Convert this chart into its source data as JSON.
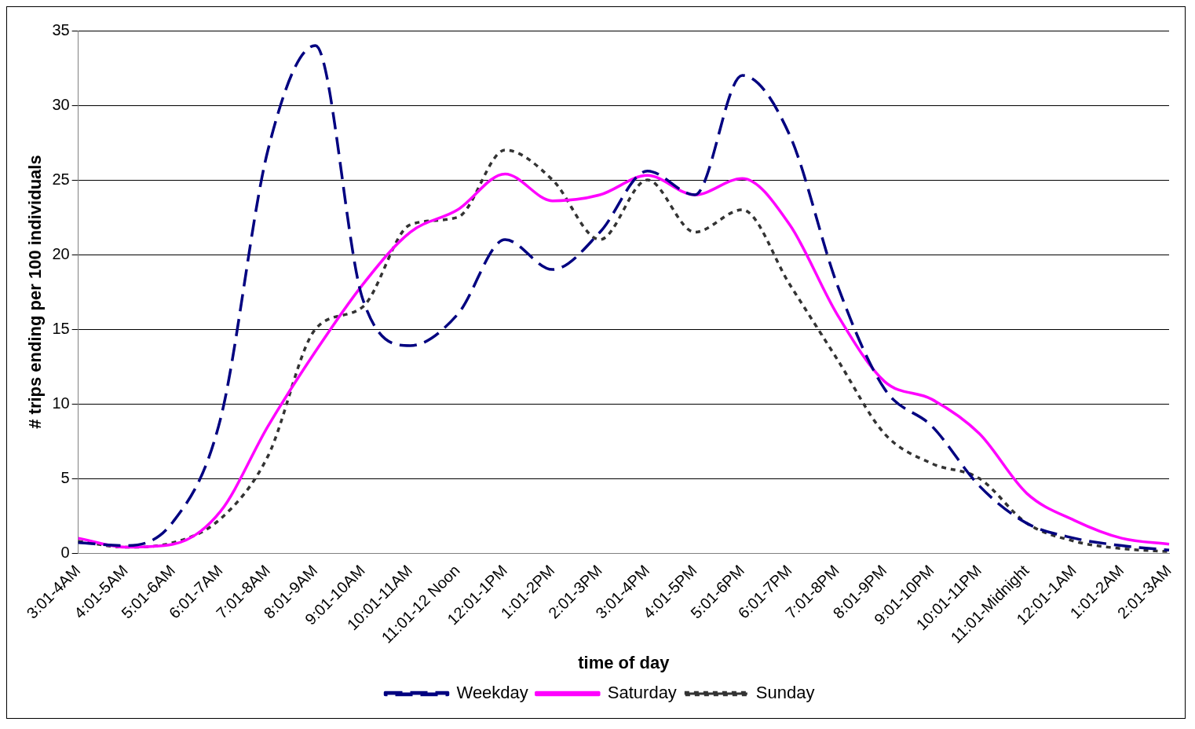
{
  "chart_data": {
    "type": "line",
    "xlabel": "time of day",
    "ylabel": "# trips ending per 100 individuals",
    "categories": [
      "3:01-4AM",
      "4:01-5AM",
      "5:01-6AM",
      "6:01-7AM",
      "7:01-8AM",
      "8:01-9AM",
      "9:01-10AM",
      "10:01-11AM",
      "11:01-12 Noon",
      "12:01-1PM",
      "1:01-2PM",
      "2:01-3PM",
      "3:01-4PM",
      "4:01-5PM",
      "5:01-6PM",
      "6:01-7PM",
      "7:01-8PM",
      "8:01-9PM",
      "9:01-10PM",
      "10:01-11PM",
      "11:01-Midnight",
      "12:01-1AM",
      "1:01-2AM",
      "2:01-3AM"
    ],
    "series": [
      {
        "name": "Weekday",
        "color": "#000080",
        "line_style": "dashed",
        "values": [
          0.7,
          0.5,
          2.1,
          9,
          27,
          34,
          17,
          13.9,
          16,
          21,
          19,
          21.5,
          25.6,
          24,
          32,
          28,
          18,
          11,
          8.5,
          4.5,
          2,
          1,
          0.5,
          0.2
        ]
      },
      {
        "name": "Saturday",
        "color": "#ff00ff",
        "line_style": "solid",
        "values": [
          1,
          0.4,
          0.6,
          2.8,
          8.5,
          13.5,
          18,
          21.5,
          23,
          25.4,
          23.6,
          24,
          25.3,
          24,
          25.1,
          22,
          16,
          11.5,
          10.3,
          8,
          4,
          2.2,
          1,
          0.6
        ]
      },
      {
        "name": "Sunday",
        "color": "#333333",
        "line_style": "dotted",
        "values": [
          0.8,
          0.4,
          0.7,
          2.3,
          6.5,
          15,
          16.5,
          22,
          22.5,
          27,
          25,
          21,
          25,
          21.5,
          23,
          18,
          13,
          8,
          6,
          5,
          2,
          0.8,
          0.3,
          0.1
        ]
      }
    ],
    "ylim": [
      0,
      35
    ],
    "yticks": [
      0,
      5,
      10,
      15,
      20,
      25,
      30,
      35
    ],
    "grid": "y",
    "legend": "bottom",
    "marker": "none"
  }
}
